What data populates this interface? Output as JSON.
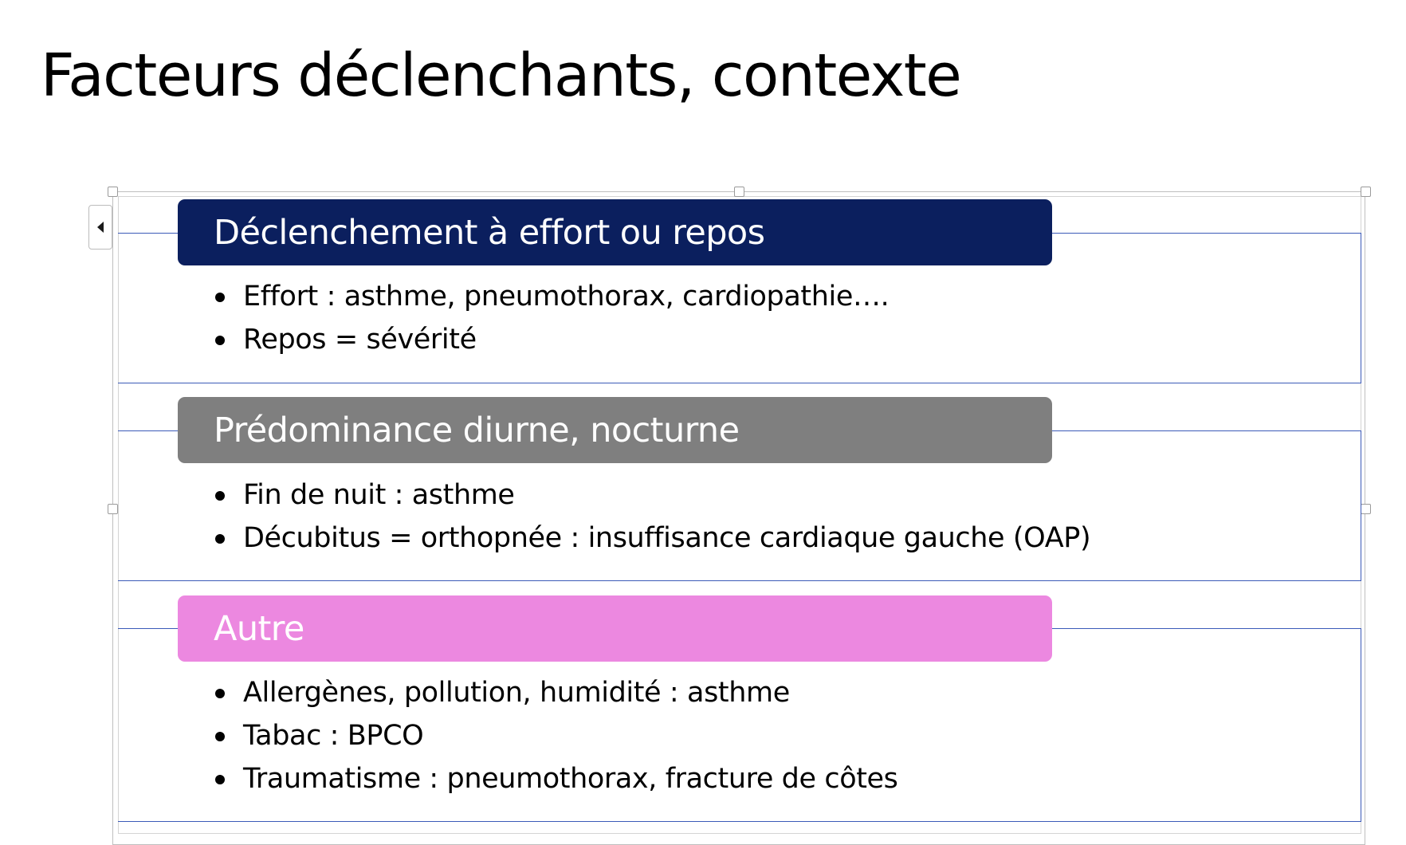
{
  "title": "Facteurs déclenchants, contexte",
  "sections": [
    {
      "header": "Déclenchement à effort ou repos",
      "color": "#0b1f5e",
      "items": [
        "Effort : asthme, pneumothorax, cardiopathie….",
        "Repos = sévérité"
      ]
    },
    {
      "header": "Prédominance diurne, nocturne",
      "color": "#7f7f7f",
      "items": [
        "Fin de nuit : asthme",
        "Décubitus = orthopnée : insuffisance cardiaque gauche (OAP)"
      ]
    },
    {
      "header": "Autre",
      "color": "#ec88e0",
      "items": [
        "Allergènes, pollution, humidité : asthme",
        "Tabac : BPCO",
        "Traumatisme : pneumothorax, fracture de côtes"
      ]
    }
  ],
  "accent_line_color": "#3b5ab8",
  "icons": {
    "text_pane_toggle": "triangle-left-icon"
  }
}
